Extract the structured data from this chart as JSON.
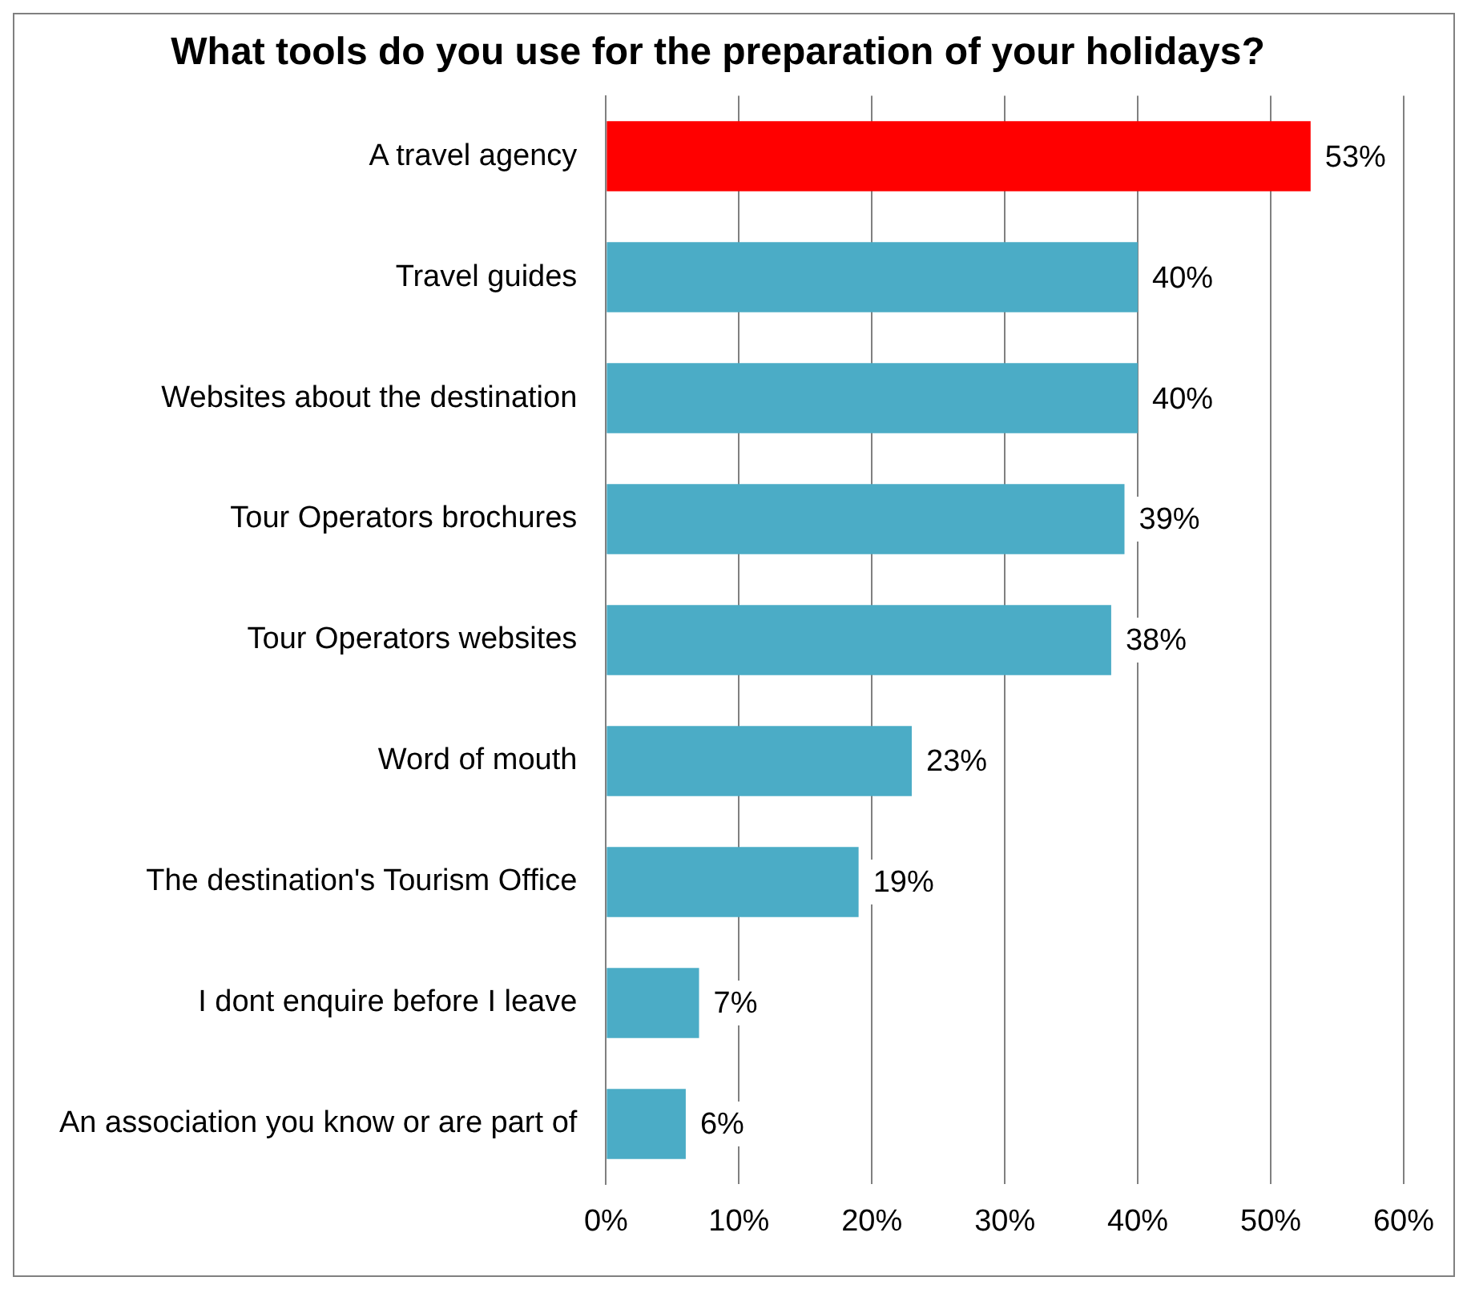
{
  "chart_data": {
    "type": "bar",
    "orientation": "horizontal",
    "title": "What tools do you use for the preparation of your holidays?",
    "categories": [
      "A travel agency",
      "Travel guides",
      "Websites about the destination",
      "Tour Operators brochures",
      "Tour Operators websites",
      "Word of mouth",
      "The destination's Tourism Office",
      "I dont enquire before I leave",
      "An association you know or are part of"
    ],
    "values": [
      53,
      40,
      40,
      39,
      38,
      23,
      19,
      7,
      6
    ],
    "colors": [
      "#ff0000",
      "#4bacc6",
      "#4bacc6",
      "#4bacc6",
      "#4bacc6",
      "#4bacc6",
      "#4bacc6",
      "#4bacc6",
      "#4bacc6"
    ],
    "value_labels": [
      "53%",
      "40%",
      "40%",
      "39%",
      "38%",
      "23%",
      "19%",
      "7%",
      "6%"
    ],
    "xlim": [
      0,
      60
    ],
    "xticks": [
      {
        "value": 0,
        "label": "0%"
      },
      {
        "value": 10,
        "label": "10%"
      },
      {
        "value": 20,
        "label": "20%"
      },
      {
        "value": 30,
        "label": "30%"
      },
      {
        "value": 40,
        "label": "40%"
      },
      {
        "value": 50,
        "label": "50%"
      },
      {
        "value": 60,
        "label": "60%"
      }
    ],
    "grid": "x"
  }
}
